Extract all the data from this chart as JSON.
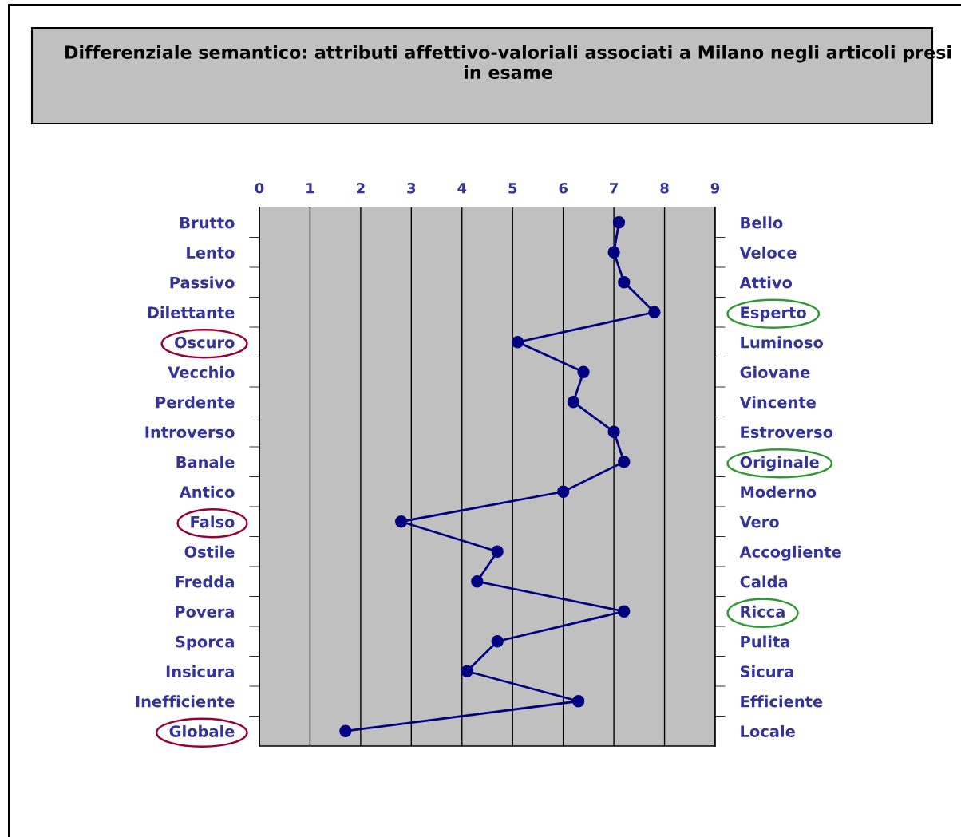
{
  "chart_data": {
    "type": "line",
    "orientation": "horizontal",
    "title": "Differenziale semantico: attributi affettivo-valoriali associati a Milano negli articoli presi in esame",
    "categories": [
      "Brutto",
      "Lento",
      "Passivo",
      "Dilettante",
      "Oscuro",
      "Vecchio",
      "Perdente",
      "Introverso",
      "Banale",
      "Antico",
      "Falso",
      "Ostile",
      "Fredda",
      "Povera",
      "Sporca",
      "Insicura",
      "Inefficiente",
      "Globale"
    ],
    "y2_categories": [
      "Bello",
      "Veloce",
      "Attivo",
      "Esperto",
      "Luminoso",
      "Giovane",
      "Vincente",
      "Estroverso",
      "Originale",
      "Moderno",
      "Vero",
      "Accogliente",
      "Calda",
      "Ricca",
      "Pulita",
      "Sicura",
      "Efficiente",
      "Locale"
    ],
    "values": [
      7.1,
      7.0,
      7.2,
      7.8,
      5.1,
      6.4,
      6.2,
      7.0,
      7.2,
      6.0,
      2.8,
      4.7,
      4.3,
      7.2,
      4.7,
      4.1,
      6.3,
      1.7
    ],
    "color": "#000080",
    "marker": "circle",
    "line_style": "solid",
    "xlim": [
      0,
      9
    ],
    "xticks": [
      0,
      1,
      2,
      3,
      4,
      5,
      6,
      7,
      8,
      9
    ],
    "grid": "x"
  }
}
